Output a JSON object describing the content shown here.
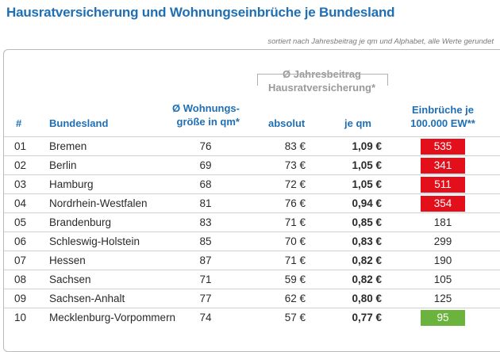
{
  "title": "Hausratversicherung und Wohnungseinbrüche je Bundesland",
  "subtitle": "sortiert nach Jahresbeitrag je qm und Alphabet, alle Werte gerundet",
  "headers": {
    "num": "#",
    "bundesland": "Bundesland",
    "size_line1": "Ø Wohnungs-",
    "size_line2": "größe in qm*",
    "group_line1": "Ø Jahresbeitrag",
    "group_line2": "Hausratversicherung*",
    "absolut": "absolut",
    "je_qm": "je qm",
    "inc_line1": "Einbrüche je",
    "inc_line2": "100.000 EW**"
  },
  "colors": {
    "blue": "#1f6fb5",
    "red": "#e3101c",
    "green": "#6cb33e"
  },
  "rows": [
    {
      "num": "01",
      "land": "Bremen",
      "size": "76",
      "absolut": "83 €",
      "qm": "1,09 €",
      "incidents": "535",
      "highlight": "red"
    },
    {
      "num": "02",
      "land": "Berlin",
      "size": "69",
      "absolut": "73 €",
      "qm": "1,05 €",
      "incidents": "341",
      "highlight": "red"
    },
    {
      "num": "03",
      "land": "Hamburg",
      "size": "68",
      "absolut": "72 €",
      "qm": "1,05 €",
      "incidents": "511",
      "highlight": "red"
    },
    {
      "num": "04",
      "land": "Nordrhein-Westfalen",
      "size": "81",
      "absolut": "76 €",
      "qm": "0,94 €",
      "incidents": "354",
      "highlight": "red"
    },
    {
      "num": "05",
      "land": "Brandenburg",
      "size": "83",
      "absolut": "71 €",
      "qm": "0,85 €",
      "incidents": "181",
      "highlight": "none"
    },
    {
      "num": "06",
      "land": "Schleswig-Holstein",
      "size": "85",
      "absolut": "70 €",
      "qm": "0,83 €",
      "incidents": "299",
      "highlight": "none"
    },
    {
      "num": "07",
      "land": "Hessen",
      "size": "87",
      "absolut": "71 €",
      "qm": "0,82 €",
      "incidents": "190",
      "highlight": "none"
    },
    {
      "num": "08",
      "land": "Sachsen",
      "size": "71",
      "absolut": "59 €",
      "qm": "0,82 €",
      "incidents": "105",
      "highlight": "none"
    },
    {
      "num": "09",
      "land": "Sachsen-Anhalt",
      "size": "77",
      "absolut": "62 €",
      "qm": "0,80 €",
      "incidents": "125",
      "highlight": "none"
    },
    {
      "num": "10",
      "land": "Mecklenburg-Vorpommern",
      "size": "74",
      "absolut": "57 €",
      "qm": "0,77 €",
      "incidents": "95",
      "highlight": "green"
    }
  ]
}
